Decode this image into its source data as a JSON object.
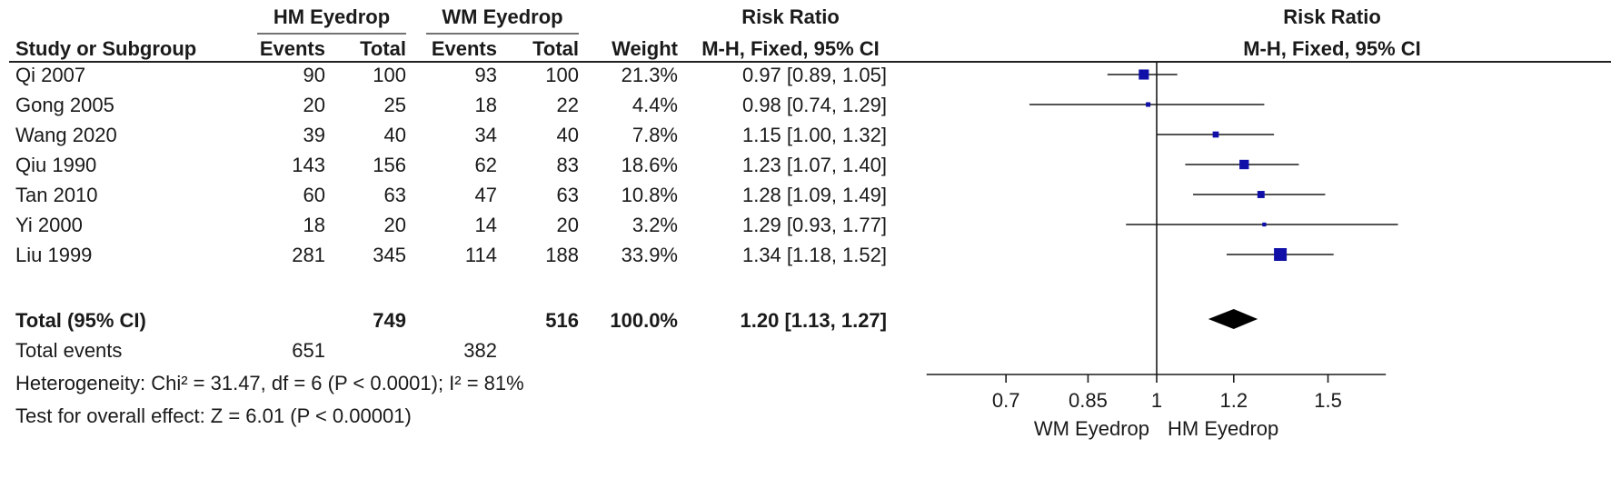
{
  "header": {
    "group1": "HM Eyedrop",
    "group2": "WM Eyedrop",
    "effect": "Risk Ratio",
    "plot_title": "Risk Ratio",
    "study": "Study or Subgroup",
    "events": "Events",
    "total": "Total",
    "weight": "Weight",
    "method": "M-H, Fixed, 95% CI",
    "plot_method": "M-H, Fixed, 95% CI"
  },
  "total_row": {
    "label": "Total (95% CI)",
    "hm_total": "749",
    "wm_total": "516",
    "weight": "100.0%",
    "ci_text": "1.20 [1.13, 1.27]",
    "rr": 1.2,
    "lower": 1.13,
    "upper": 1.27
  },
  "events_row": {
    "label": "Total events",
    "hm_events": "651",
    "wm_events": "382"
  },
  "heterogeneity": "Heterogeneity: Chi² = 31.47, df = 6 (P < 0.0001); I² = 81%",
  "overall_effect": "Test for overall effect: Z = 6.01 (P < 0.00001)",
  "chart_data": {
    "type": "forest",
    "scale": "log",
    "null_value": 1,
    "xlim": [
      0.58,
      1.72
    ],
    "ticks": [
      0.7,
      0.85,
      1,
      1.2,
      1.5
    ],
    "tick_labels": [
      "0.7",
      "0.85",
      "1",
      "1.2",
      "1.5"
    ],
    "favours_left": "WM Eyedrop",
    "favours_right": "HM Eyedrop",
    "marker_color": "#1010a8",
    "studies": [
      {
        "name": "Qi 2007",
        "hm_events": 90,
        "hm_total": 100,
        "wm_events": 93,
        "wm_total": 100,
        "weight": "21.3%",
        "w": 21.3,
        "ci_text": "0.97 [0.89, 1.05]",
        "rr": 0.97,
        "lower": 0.89,
        "upper": 1.05
      },
      {
        "name": "Gong 2005",
        "hm_events": 20,
        "hm_total": 25,
        "wm_events": 18,
        "wm_total": 22,
        "weight": "4.4%",
        "w": 4.4,
        "ci_text": "0.98 [0.74, 1.29]",
        "rr": 0.98,
        "lower": 0.74,
        "upper": 1.29
      },
      {
        "name": "Wang 2020",
        "hm_events": 39,
        "hm_total": 40,
        "wm_events": 34,
        "wm_total": 40,
        "weight": "7.8%",
        "w": 7.8,
        "ci_text": "1.15 [1.00, 1.32]",
        "rr": 1.15,
        "lower": 1.0,
        "upper": 1.32
      },
      {
        "name": "Qiu 1990",
        "hm_events": 143,
        "hm_total": 156,
        "wm_events": 62,
        "wm_total": 83,
        "weight": "18.6%",
        "w": 18.6,
        "ci_text": "1.23 [1.07, 1.40]",
        "rr": 1.23,
        "lower": 1.07,
        "upper": 1.4
      },
      {
        "name": "Tan 2010",
        "hm_events": 60,
        "hm_total": 63,
        "wm_events": 47,
        "wm_total": 63,
        "weight": "10.8%",
        "w": 10.8,
        "ci_text": "1.28 [1.09, 1.49]",
        "rr": 1.28,
        "lower": 1.09,
        "upper": 1.49
      },
      {
        "name": "Yi 2000",
        "hm_events": 18,
        "hm_total": 20,
        "wm_events": 14,
        "wm_total": 20,
        "weight": "3.2%",
        "w": 3.2,
        "ci_text": "1.29 [0.93, 1.77]",
        "rr": 1.29,
        "lower": 0.93,
        "upper": 1.77
      },
      {
        "name": "Liu 1999",
        "hm_events": 281,
        "hm_total": 345,
        "wm_events": 114,
        "wm_total": 188,
        "weight": "33.9%",
        "w": 33.9,
        "ci_text": "1.34 [1.18, 1.52]",
        "rr": 1.34,
        "lower": 1.18,
        "upper": 1.52
      }
    ]
  }
}
